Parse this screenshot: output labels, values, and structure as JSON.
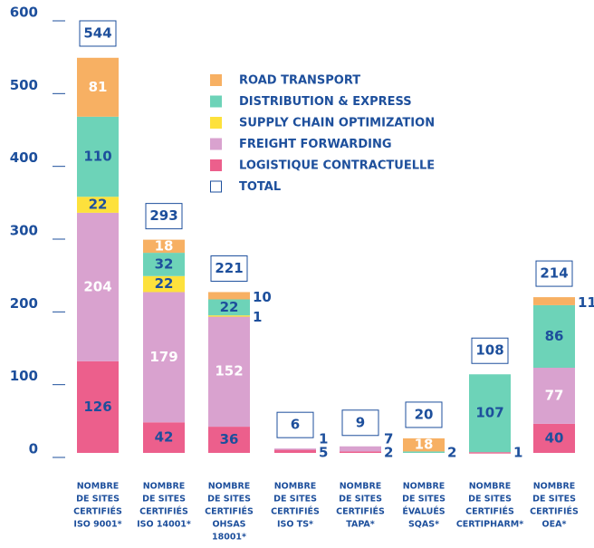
{
  "chart_data": {
    "type": "stacked_bar",
    "categories": [
      [
        "NOMBRE",
        "DE SITES",
        "CERTIFIÉS",
        "ISO 9001*"
      ],
      [
        "NOMBRE",
        "DE SITES",
        "CERTIFIÉS",
        "ISO 14001*"
      ],
      [
        "NOMBRE",
        "DE SITES",
        "CERTIFIÉS",
        "OHSAS",
        "18001*"
      ],
      [
        "NOMBRE",
        "DE SITES",
        "CERTIFIÉS",
        "ISO TS*"
      ],
      [
        "NOMBRE",
        "DE SITES",
        "CERTIFIÉS",
        "TAPA*"
      ],
      [
        "NOMBRE",
        "DE SITES",
        "ÉVALUÉS",
        "SQAS*"
      ],
      [
        "NOMBRE",
        "DE SITES",
        "CERTIFIÉS",
        "CERTIPHARM*"
      ],
      [
        "NOMBRE",
        "DE SITES",
        "CERTIFIÉS",
        "OEA*"
      ]
    ],
    "series": [
      {
        "name": "LOGISTIQUE CONTRACTUELLE",
        "color": "#ec5f8c",
        "label_color": "#1d4f9c",
        "values": [
          126,
          42,
          36,
          5,
          2,
          null,
          1,
          40
        ]
      },
      {
        "name": "FREIGHT FORWARDING",
        "color": "#d9a2cf",
        "label_color": "#ffffff",
        "values": [
          204,
          179,
          152,
          1,
          7,
          null,
          null,
          77
        ]
      },
      {
        "name": "SUPPLY CHAIN OPTIMIZATION",
        "color": "#fde13c",
        "label_color": "#1d4f9c",
        "values": [
          22,
          22,
          1,
          null,
          null,
          null,
          null,
          null
        ]
      },
      {
        "name": "DISTRIBUTION & EXPRESS",
        "color": "#6dd3b8",
        "label_color": "#1d4f9c",
        "values": [
          110,
          32,
          22,
          null,
          null,
          2,
          107,
          86
        ]
      },
      {
        "name": "ROAD TRANSPORT",
        "color": "#f7b063",
        "label_color": "#ffffff",
        "values": [
          81,
          18,
          10,
          null,
          null,
          18,
          null,
          11
        ]
      }
    ],
    "totals_name": "TOTAL",
    "totals": [
      544,
      293,
      221,
      6,
      9,
      20,
      108,
      214
    ],
    "ylim": [
      0,
      600
    ],
    "yticks": [
      0,
      100,
      200,
      300,
      400,
      500,
      600
    ]
  }
}
